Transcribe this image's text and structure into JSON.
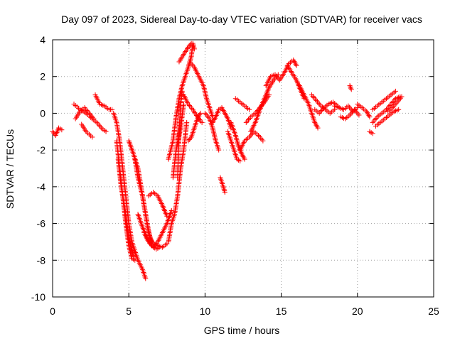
{
  "chart_data": {
    "type": "scatter",
    "title": "Day 097 of 2023, Sidereal Day-to-day VTEC variation (SDTVAR) for receiver vacs",
    "xlabel": "GPS time / hours",
    "ylabel": "SDTVAR / TECUs",
    "xlim": [
      0,
      25
    ],
    "ylim": [
      -10,
      4
    ],
    "xticks": [
      0,
      5,
      10,
      15,
      20,
      25
    ],
    "yticks": [
      -10,
      -8,
      -6,
      -4,
      -2,
      0,
      2,
      4
    ],
    "grid": true,
    "marker": "+",
    "marker_color": "#ff0000",
    "series": [
      {
        "name": "SDTVAR",
        "tracks": [
          [
            [
              0.0,
              -1.0
            ],
            [
              0.2,
              -1.2
            ],
            [
              0.4,
              -0.8
            ],
            [
              0.6,
              -0.9
            ]
          ],
          [
            [
              1.4,
              0.5
            ],
            [
              1.8,
              0.2
            ],
            [
              2.2,
              0.0
            ],
            [
              2.6,
              -0.3
            ],
            [
              2.9,
              -0.5
            ],
            [
              3.2,
              -0.8
            ],
            [
              3.5,
              -1.0
            ]
          ],
          [
            [
              1.5,
              -0.3
            ],
            [
              1.8,
              0.1
            ],
            [
              2.1,
              0.3
            ],
            [
              2.4,
              0.0
            ],
            [
              2.7,
              -0.3
            ]
          ],
          [
            [
              2.8,
              1.0
            ],
            [
              3.1,
              0.5
            ],
            [
              3.4,
              0.4
            ],
            [
              3.7,
              0.2
            ],
            [
              3.9,
              0.2
            ]
          ],
          [
            [
              1.9,
              -0.6
            ],
            [
              2.2,
              -1.0
            ],
            [
              2.6,
              -1.3
            ]
          ],
          [
            [
              4.0,
              0.0
            ],
            [
              4.2,
              -0.5
            ],
            [
              4.4,
              -1.5
            ],
            [
              4.6,
              -3.0
            ],
            [
              4.8,
              -4.5
            ],
            [
              5.0,
              -6.0
            ],
            [
              5.2,
              -7.0
            ],
            [
              5.4,
              -7.5
            ],
            [
              5.6,
              -8.0
            ],
            [
              5.9,
              -8.5
            ],
            [
              6.1,
              -9.0
            ]
          ],
          [
            [
              4.2,
              -1.5
            ],
            [
              4.4,
              -3.0
            ],
            [
              4.6,
              -4.5
            ],
            [
              4.8,
              -6.0
            ],
            [
              5.0,
              -7.2
            ],
            [
              5.2,
              -7.9
            ],
            [
              5.4,
              -8.0
            ]
          ],
          [
            [
              4.3,
              -2.5
            ],
            [
              4.5,
              -4.0
            ],
            [
              4.8,
              -5.5
            ],
            [
              5.0,
              -6.8
            ],
            [
              5.3,
              -7.8
            ]
          ],
          [
            [
              5.0,
              -1.5
            ],
            [
              5.3,
              -2.2
            ],
            [
              5.6,
              -3.0
            ],
            [
              5.8,
              -4.0
            ],
            [
              6.0,
              -5.0
            ],
            [
              6.2,
              -6.0
            ],
            [
              6.4,
              -6.8
            ],
            [
              6.6,
              -7.1
            ],
            [
              6.9,
              -7.2
            ],
            [
              7.2,
              -7.3
            ],
            [
              7.5,
              -7.1
            ]
          ],
          [
            [
              5.4,
              -2.5
            ],
            [
              5.6,
              -3.5
            ],
            [
              5.9,
              -4.5
            ],
            [
              6.1,
              -5.5
            ],
            [
              6.3,
              -6.5
            ],
            [
              6.5,
              -7.0
            ]
          ],
          [
            [
              5.6,
              -5.5
            ],
            [
              5.9,
              -6.2
            ],
            [
              6.2,
              -6.8
            ],
            [
              6.5,
              -7.2
            ],
            [
              6.8,
              -7.4
            ],
            [
              7.0,
              -7.3
            ]
          ],
          [
            [
              6.0,
              -6.5
            ],
            [
              6.3,
              -7.0
            ],
            [
              6.6,
              -7.3
            ],
            [
              6.9,
              -7.0
            ],
            [
              7.2,
              -6.5
            ],
            [
              7.5,
              -6.0
            ],
            [
              7.8,
              -5.3
            ]
          ],
          [
            [
              6.3,
              -4.5
            ],
            [
              6.6,
              -4.3
            ],
            [
              6.9,
              -4.5
            ],
            [
              7.2,
              -5.0
            ],
            [
              7.5,
              -5.6
            ]
          ],
          [
            [
              7.6,
              -7.0
            ],
            [
              7.8,
              -6.0
            ],
            [
              8.0,
              -5.5
            ],
            [
              8.2,
              -4.5
            ],
            [
              8.4,
              -3.0
            ],
            [
              8.6,
              -2.0
            ],
            [
              8.8,
              -0.5
            ]
          ],
          [
            [
              7.6,
              -2.5
            ],
            [
              7.9,
              -1.5
            ],
            [
              8.1,
              -0.2
            ],
            [
              8.3,
              0.8
            ],
            [
              8.5,
              1.5
            ],
            [
              8.7,
              2.0
            ],
            [
              8.9,
              2.5
            ],
            [
              9.1,
              3.1
            ],
            [
              9.2,
              3.8
            ],
            [
              9.3,
              3.5
            ]
          ],
          [
            [
              7.9,
              -3.5
            ],
            [
              8.1,
              -2.0
            ],
            [
              8.4,
              -0.8
            ],
            [
              8.6,
              0.5
            ]
          ],
          [
            [
              8.2,
              -3.5
            ],
            [
              8.3,
              -1.0
            ],
            [
              8.4,
              0.5
            ],
            [
              8.5,
              1.2
            ]
          ],
          [
            [
              8.3,
              2.8
            ],
            [
              8.6,
              3.2
            ],
            [
              8.9,
              3.6
            ],
            [
              9.1,
              3.8
            ]
          ],
          [
            [
              9.0,
              2.8
            ],
            [
              9.3,
              2.5
            ],
            [
              9.6,
              2.0
            ],
            [
              9.9,
              1.5
            ],
            [
              10.1,
              0.8
            ],
            [
              10.3,
              0.3
            ],
            [
              10.5,
              -0.2
            ]
          ],
          [
            [
              8.6,
              1.0
            ],
            [
              8.9,
              0.5
            ],
            [
              9.2,
              0.2
            ],
            [
              9.5,
              -0.2
            ],
            [
              9.8,
              -0.5
            ]
          ],
          [
            [
              8.9,
              -1.5
            ],
            [
              9.1,
              -1.3
            ],
            [
              9.3,
              -0.8
            ],
            [
              9.5,
              -0.3
            ],
            [
              9.7,
              0.0
            ]
          ],
          [
            [
              10.0,
              0.0
            ],
            [
              10.3,
              -0.3
            ],
            [
              10.5,
              -0.8
            ],
            [
              10.7,
              -1.5
            ],
            [
              10.9,
              -2.0
            ]
          ],
          [
            [
              10.5,
              -0.5
            ],
            [
              10.7,
              -0.2
            ],
            [
              10.9,
              0.2
            ],
            [
              11.1,
              0.3
            ],
            [
              11.3,
              0.0
            ],
            [
              11.5,
              -0.3
            ],
            [
              11.7,
              -0.8
            ]
          ],
          [
            [
              11.0,
              -3.5
            ],
            [
              11.2,
              -4.0
            ],
            [
              11.3,
              -4.3
            ]
          ],
          [
            [
              11.5,
              -1.0
            ],
            [
              11.7,
              -1.5
            ],
            [
              11.9,
              -2.0
            ],
            [
              12.1,
              -2.5
            ],
            [
              12.3,
              -2.6
            ]
          ],
          [
            [
              11.7,
              -0.5
            ],
            [
              12.0,
              -1.2
            ],
            [
              12.2,
              -1.8
            ],
            [
              12.4,
              -2.2
            ],
            [
              12.6,
              -2.5
            ]
          ],
          [
            [
              12.3,
              -2.0
            ],
            [
              12.6,
              -1.5
            ],
            [
              12.9,
              -1.3
            ],
            [
              13.2,
              -1.0
            ],
            [
              13.5,
              -1.2
            ],
            [
              13.8,
              -1.5
            ]
          ],
          [
            [
              12.7,
              -0.5
            ],
            [
              13.0,
              -0.2
            ],
            [
              13.3,
              0.0
            ],
            [
              13.6,
              0.3
            ],
            [
              13.9,
              0.6
            ],
            [
              14.2,
              1.0
            ]
          ],
          [
            [
              13.0,
              -1.0
            ],
            [
              13.3,
              -0.5
            ],
            [
              13.6,
              0.2
            ],
            [
              13.9,
              0.8
            ],
            [
              14.2,
              1.4
            ],
            [
              14.5,
              1.8
            ],
            [
              14.8,
              2.1
            ]
          ],
          [
            [
              12.0,
              0.8
            ],
            [
              12.3,
              0.6
            ],
            [
              12.6,
              0.4
            ],
            [
              12.9,
              0.2
            ]
          ],
          [
            [
              14.0,
              1.5
            ],
            [
              14.3,
              2.0
            ],
            [
              14.6,
              2.1
            ],
            [
              14.9,
              1.8
            ],
            [
              15.2,
              2.2
            ],
            [
              15.5,
              2.7
            ],
            [
              15.8,
              2.9
            ],
            [
              16.0,
              2.6
            ]
          ],
          [
            [
              15.4,
              2.6
            ],
            [
              15.7,
              2.2
            ],
            [
              16.0,
              1.8
            ],
            [
              16.3,
              1.2
            ],
            [
              16.5,
              0.8
            ]
          ],
          [
            [
              16.2,
              1.5
            ],
            [
              16.5,
              1.0
            ],
            [
              16.8,
              0.5
            ],
            [
              17.0,
              0.0
            ],
            [
              17.2,
              -0.5
            ],
            [
              17.4,
              -0.8
            ]
          ],
          [
            [
              17.0,
              1.0
            ],
            [
              17.3,
              0.7
            ],
            [
              17.6,
              0.4
            ],
            [
              17.9,
              0.2
            ],
            [
              18.2,
              0.0
            ],
            [
              18.5,
              0.2
            ]
          ],
          [
            [
              17.2,
              0.2
            ],
            [
              17.5,
              0.0
            ],
            [
              17.8,
              0.3
            ],
            [
              18.1,
              0.5
            ],
            [
              18.4,
              0.6
            ],
            [
              18.7,
              0.4
            ]
          ],
          [
            [
              18.5,
              0.4
            ],
            [
              18.8,
              0.3
            ],
            [
              19.1,
              0.2
            ],
            [
              19.4,
              0.4
            ],
            [
              19.7,
              0.1
            ],
            [
              20.0,
              0.3
            ]
          ],
          [
            [
              18.9,
              -0.2
            ],
            [
              19.2,
              -0.3
            ],
            [
              19.5,
              -0.1
            ],
            [
              19.8,
              0.2
            ],
            [
              20.1,
              -0.1
            ]
          ],
          [
            [
              19.5,
              1.5
            ],
            [
              19.6,
              1.3
            ]
          ],
          [
            [
              20.0,
              0.5
            ],
            [
              20.3,
              0.3
            ],
            [
              20.6,
              0.1
            ],
            [
              20.8,
              -0.2
            ]
          ],
          [
            [
              20.8,
              -1.0
            ],
            [
              21.0,
              -1.1
            ]
          ],
          [
            [
              21.0,
              -0.5
            ],
            [
              21.3,
              -0.2
            ],
            [
              21.6,
              0.0
            ],
            [
              21.9,
              0.2
            ],
            [
              22.2,
              0.5
            ],
            [
              22.5,
              0.8
            ],
            [
              22.8,
              0.9
            ]
          ],
          [
            [
              21.0,
              0.2
            ],
            [
              21.3,
              0.4
            ],
            [
              21.6,
              0.6
            ],
            [
              21.9,
              0.8
            ],
            [
              22.2,
              1.0
            ],
            [
              22.5,
              1.2
            ]
          ],
          [
            [
              21.2,
              -0.7
            ],
            [
              21.5,
              -0.5
            ],
            [
              21.8,
              -0.3
            ],
            [
              22.1,
              -0.1
            ],
            [
              22.4,
              0.1
            ],
            [
              22.7,
              0.2
            ]
          ],
          [
            [
              22.0,
              0.1
            ],
            [
              22.3,
              0.3
            ],
            [
              22.6,
              0.6
            ],
            [
              22.9,
              0.9
            ]
          ]
        ]
      }
    ]
  }
}
